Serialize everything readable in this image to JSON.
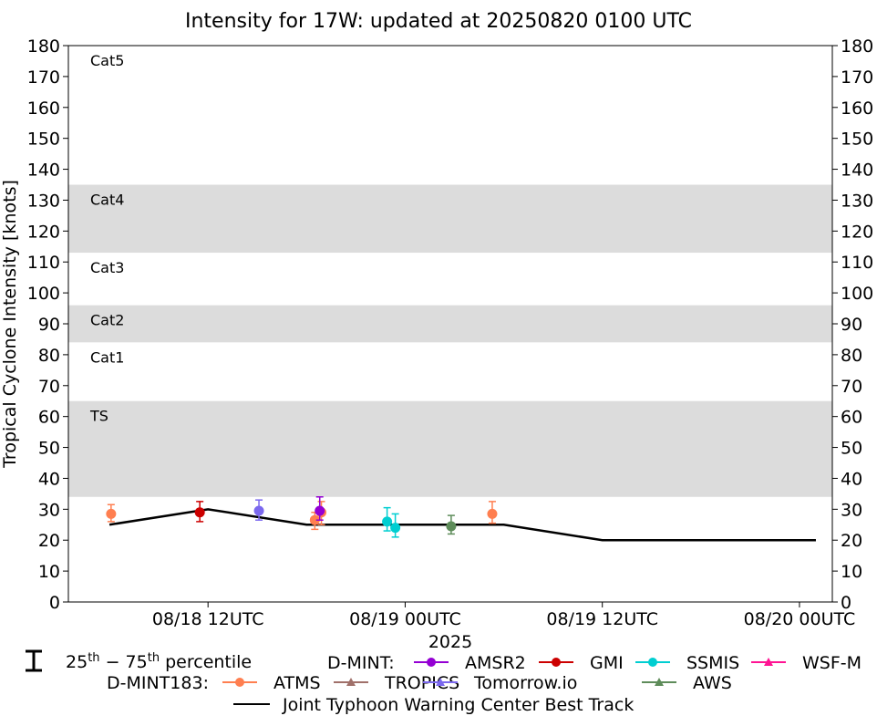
{
  "chart_data": {
    "type": "scatter",
    "title": "Intensity for 17W: updated at 20250820 0100 UTC",
    "ylabel": "Tropical Cyclone Intensity [knots]",
    "xlabel": "2025",
    "ylim": [
      0,
      180
    ],
    "yticks": [
      0,
      10,
      20,
      30,
      40,
      50,
      60,
      70,
      80,
      90,
      100,
      110,
      120,
      130,
      140,
      150,
      160,
      170,
      180
    ],
    "xlim_hours": [
      -8.5,
      38
    ],
    "xticks": [
      {
        "label": "08/18 12UTC",
        "hours": 0
      },
      {
        "label": "08/19 00UTC",
        "hours": 12
      },
      {
        "label": "08/19 12UTC",
        "hours": 24
      },
      {
        "label": "08/20 00UTC",
        "hours": 36
      }
    ],
    "categories": [
      {
        "label": "TS",
        "low": 34,
        "high": 65,
        "shaded": true
      },
      {
        "label": "Cat1",
        "low": 65,
        "high": 84,
        "shaded": false
      },
      {
        "label": "Cat2",
        "low": 84,
        "high": 96,
        "shaded": true
      },
      {
        "label": "Cat3",
        "low": 96,
        "high": 113,
        "shaded": false
      },
      {
        "label": "Cat4",
        "low": 113,
        "high": 135,
        "shaded": true
      },
      {
        "label": "Cat5",
        "low": 135,
        "high": 180,
        "shaded": false
      }
    ],
    "best_track": {
      "name": "Joint Typhoon Warning Center Best Track",
      "color": "#000000",
      "hours": [
        -6,
        0,
        6,
        12,
        18,
        24,
        30,
        37
      ],
      "values": [
        25,
        30,
        25,
        25,
        25,
        20,
        20,
        20
      ]
    },
    "series": [
      {
        "name": "ATMS",
        "group": "D-MINT183",
        "marker": "circle",
        "color": "#FF7F50",
        "points": [
          {
            "hours": -5.9,
            "value": 28.5,
            "low": 26,
            "high": 31.5
          },
          {
            "hours": 6.5,
            "value": 26.5,
            "low": 23.5,
            "high": 29
          },
          {
            "hours": 6.9,
            "value": 29,
            "low": 25,
            "high": 32.5
          },
          {
            "hours": 17.3,
            "value": 28.5,
            "low": 25.5,
            "high": 32.5
          }
        ]
      },
      {
        "name": "TROPICS",
        "group": "D-MINT183",
        "marker": "triangle",
        "color": "#A0706A",
        "points": []
      },
      {
        "name": "Tomorrow.io",
        "group": "D-MINT183",
        "marker": "triangle",
        "color": "#7B68EE",
        "points": []
      },
      {
        "name": "AWS",
        "group": "D-MINT183",
        "marker": "triangle",
        "color": "#5E8C5A",
        "points": [
          {
            "hours": 14.8,
            "value": 24.5,
            "low": 22,
            "high": 28
          }
        ]
      },
      {
        "name": "AMSR2",
        "group": "D-MINT",
        "marker": "circle",
        "color": "#9400D3",
        "points": [
          {
            "hours": 6.8,
            "value": 29.5,
            "low": 26.5,
            "high": 34
          }
        ]
      },
      {
        "name": "GMI",
        "group": "D-MINT",
        "marker": "circle",
        "color": "#CC0000",
        "points": [
          {
            "hours": -0.5,
            "value": 29,
            "low": 26,
            "high": 32.5
          }
        ]
      },
      {
        "name": "SSMIS",
        "group": "D-MINT",
        "marker": "circle",
        "color": "#00CED1",
        "points": [
          {
            "hours": 10.9,
            "value": 26,
            "low": 23,
            "high": 30.5
          },
          {
            "hours": 11.4,
            "value": 24,
            "low": 21,
            "high": 28.5
          }
        ]
      },
      {
        "name": "WSF-M",
        "group": "D-MINT",
        "marker": "triangle",
        "color": "#FF1493",
        "points": []
      },
      {
        "name": "Tomorrow.io (D-MINT183 extra)",
        "group": "D-MINT183-hidden",
        "marker": "circle",
        "color": "#7B68EE",
        "points": [
          {
            "hours": 3.1,
            "value": 29.5,
            "low": 26.5,
            "high": 33
          }
        ]
      }
    ],
    "legend": {
      "percentile_label_pre": "25",
      "percentile_sup1": "th",
      "percentile_mid": " − 75",
      "percentile_sup2": "th",
      "percentile_post": " percentile",
      "dmint_label": "D-MINT:",
      "dmint183_label": "D-MINT183:",
      "dmint_items": [
        "AMSR2",
        "GMI",
        "SSMIS",
        "WSF-M"
      ],
      "dmint183_items": [
        "ATMS",
        "TROPICS",
        "Tomorrow.io",
        "AWS"
      ],
      "best_track_label": "Joint Typhoon Warning Center Best Track"
    }
  }
}
